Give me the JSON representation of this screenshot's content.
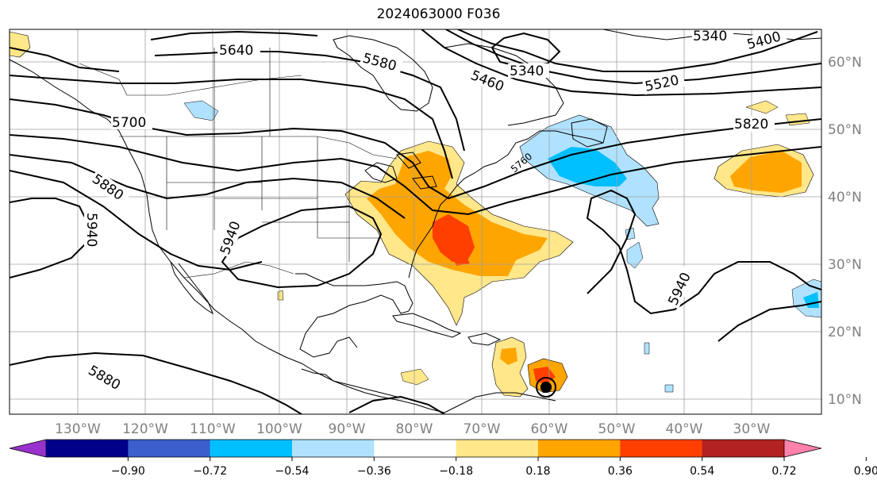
{
  "title": "2024063000 F036",
  "longitude_labels": [
    "130°W",
    "120°W",
    "110°W",
    "100°W",
    "90°W",
    "80°W",
    "70°W",
    "60°W",
    "50°W",
    "40°W",
    "30°W"
  ],
  "latitude_labels": [
    "60°N",
    "50°N",
    "40°N",
    "30°N",
    "20°N",
    "10°N"
  ],
  "contour_labels": [
    {
      "text": "5640",
      "angle": 0
    },
    {
      "text": "5580",
      "angle": 15
    },
    {
      "text": "5460",
      "angle": 22
    },
    {
      "text": "5340",
      "angle": 0
    },
    {
      "text": "5340",
      "angle": 0
    },
    {
      "text": "5400",
      "angle": -15
    },
    {
      "text": "5520",
      "angle": -12
    },
    {
      "text": "5700",
      "angle": 0
    },
    {
      "text": "5820",
      "angle": 0
    },
    {
      "text": "5880",
      "angle": 35
    },
    {
      "text": "5940",
      "angle": 90
    },
    {
      "text": "5940",
      "angle": -70
    },
    {
      "text": "5940",
      "angle": -65
    },
    {
      "text": "5880",
      "angle": 30
    },
    {
      "text": "5760",
      "angle": -40
    }
  ],
  "colorbar": {
    "tick_labels": [
      "−0.90",
      "−0.72",
      "−0.54",
      "−0.36",
      "−0.18",
      "0.18",
      "0.36",
      "0.54",
      "0.72",
      "0.90"
    ],
    "colors": [
      "#9932cc",
      "#00008b",
      "#3a5fcd",
      "#00bfff",
      "#b0e2ff",
      "#ffffff",
      "#ffe78a",
      "#ffa500",
      "#ff3f00",
      "#b22222",
      "#ff82ab"
    ]
  }
}
